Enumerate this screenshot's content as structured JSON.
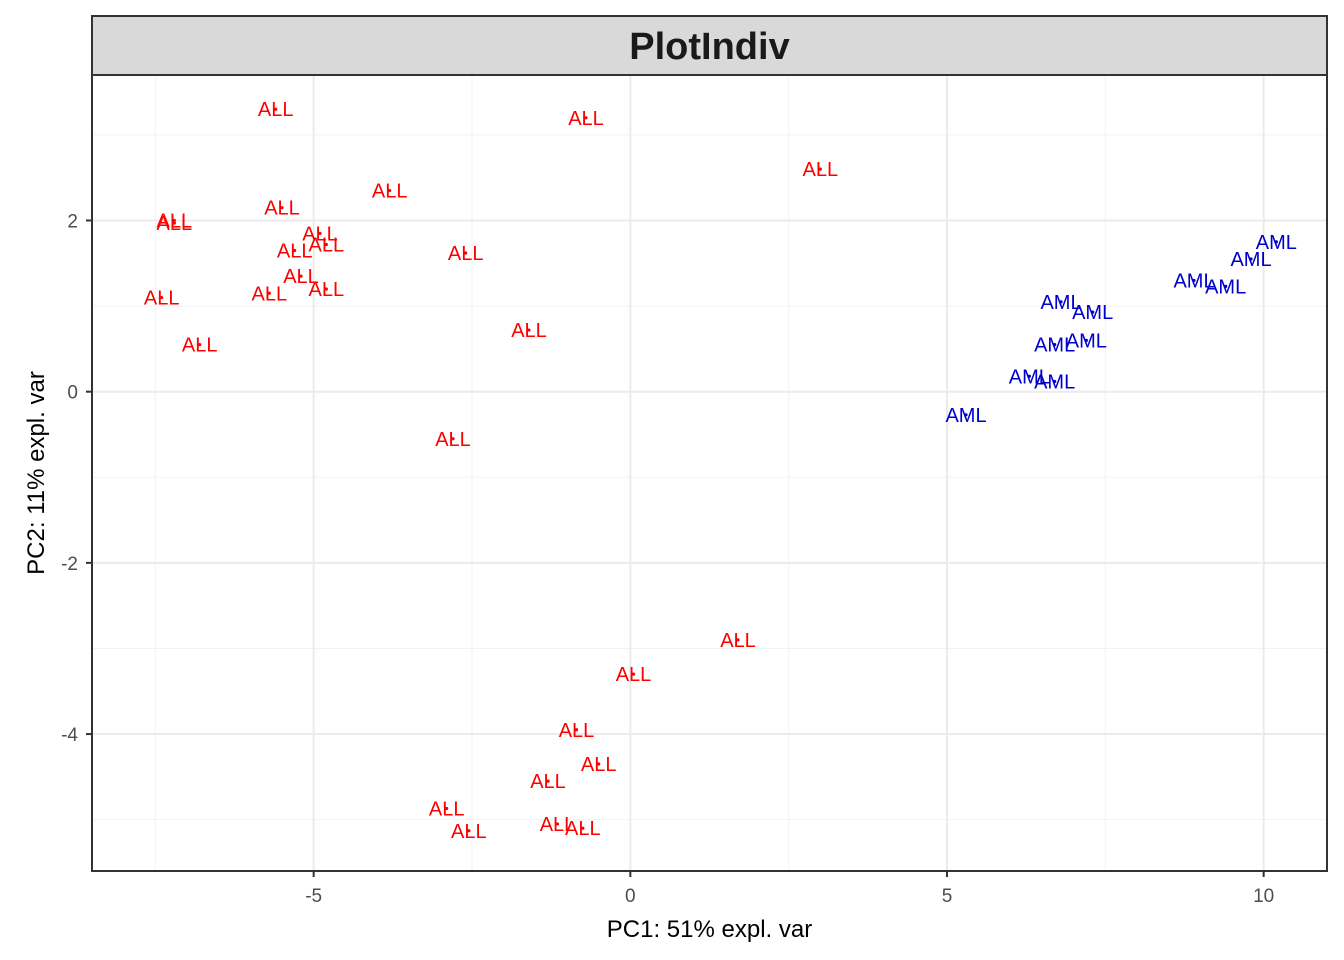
{
  "chart_data": {
    "type": "scatter",
    "title": "PlotIndiv",
    "xlabel": "PC1: 51% expl. var",
    "ylabel": "PC2: 11% expl. var",
    "xlim": [
      -8.5,
      11.0
    ],
    "ylim": [
      -5.6,
      3.7
    ],
    "xticks": [
      -5,
      0,
      5,
      10
    ],
    "xtick_labels": [
      "-5",
      "0",
      "5",
      "10"
    ],
    "yticks": [
      -4,
      -2,
      0,
      2
    ],
    "ytick_labels": [
      "-4",
      "-2",
      "0",
      "2"
    ],
    "grid": true,
    "legend": "none",
    "groups": [
      {
        "label": "ALL",
        "color": "#ff0000",
        "points": [
          {
            "x": -5.6,
            "y": 3.3
          },
          {
            "x": -0.7,
            "y": 3.2
          },
          {
            "x": 3.0,
            "y": 2.6
          },
          {
            "x": -7.2,
            "y": 2.0
          },
          {
            "x": -7.2,
            "y": 1.97
          },
          {
            "x": -5.5,
            "y": 2.15
          },
          {
            "x": -3.8,
            "y": 2.35
          },
          {
            "x": -4.9,
            "y": 1.85
          },
          {
            "x": -4.8,
            "y": 1.72
          },
          {
            "x": -5.3,
            "y": 1.65
          },
          {
            "x": -2.6,
            "y": 1.62
          },
          {
            "x": -5.2,
            "y": 1.35
          },
          {
            "x": -7.4,
            "y": 1.1
          },
          {
            "x": -5.7,
            "y": 1.15
          },
          {
            "x": -4.8,
            "y": 1.2
          },
          {
            "x": -1.6,
            "y": 0.72
          },
          {
            "x": -6.8,
            "y": 0.55
          },
          {
            "x": -2.8,
            "y": -0.55
          },
          {
            "x": 1.7,
            "y": -2.9
          },
          {
            "x": 0.05,
            "y": -3.3
          },
          {
            "x": -0.85,
            "y": -3.95
          },
          {
            "x": -0.5,
            "y": -4.35
          },
          {
            "x": -1.3,
            "y": -4.55
          },
          {
            "x": -2.9,
            "y": -4.87
          },
          {
            "x": -2.55,
            "y": -5.13
          },
          {
            "x": -1.15,
            "y": -5.05
          },
          {
            "x": -0.75,
            "y": -5.1
          }
        ]
      },
      {
        "label": "AML",
        "color": "#0000cd",
        "points": [
          {
            "x": 10.2,
            "y": 1.75
          },
          {
            "x": 9.8,
            "y": 1.55
          },
          {
            "x": 8.9,
            "y": 1.3
          },
          {
            "x": 9.4,
            "y": 1.23
          },
          {
            "x": 6.8,
            "y": 1.05
          },
          {
            "x": 7.3,
            "y": 0.93
          },
          {
            "x": 6.7,
            "y": 0.55
          },
          {
            "x": 7.2,
            "y": 0.6
          },
          {
            "x": 6.3,
            "y": 0.18
          },
          {
            "x": 6.7,
            "y": 0.12
          },
          {
            "x": 5.3,
            "y": -0.27
          }
        ]
      }
    ]
  }
}
